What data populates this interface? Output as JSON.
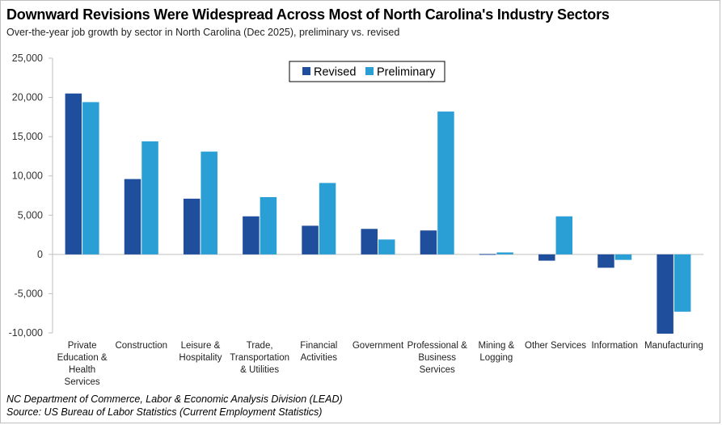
{
  "header": {
    "title": "Downward Revisions Were Widespread Across Most of North Carolina's Industry Sectors",
    "subtitle": "Over-the-year job growth by sector in North Carolina (Dec 2025), preliminary vs. revised"
  },
  "footer": {
    "source_line_1": "NC Department of Commerce, Labor & Economic Analysis Division (LEAD)",
    "source_line_2": "Source: US Bureau of Labor Statistics (Current Employment Statistics)"
  },
  "chart_data": {
    "type": "bar",
    "title": "Downward Revisions Were Widespread Across Most of North Carolina's Industry Sectors",
    "subtitle": "Over-the-year job growth by sector in North Carolina (Dec 2025), preliminary vs. revised",
    "categories": [
      [
        "Private",
        "Education &",
        "Health",
        "Services"
      ],
      [
        "Construction"
      ],
      [
        "Leisure &",
        "Hospitality"
      ],
      [
        "Trade,",
        "Transportation",
        "& Utilities"
      ],
      [
        "Financial",
        "Activities"
      ],
      [
        "Government"
      ],
      [
        "Professional &",
        "Business",
        "Services"
      ],
      [
        "Mining &",
        "Logging"
      ],
      [
        "Other Services"
      ],
      [
        "Information"
      ],
      [
        "Manufacturing"
      ]
    ],
    "series": [
      {
        "name": "Revised",
        "color": "#1f4e9c",
        "values": [
          20500,
          9600,
          7100,
          4850,
          3650,
          3250,
          3050,
          50,
          -800,
          -1700,
          -10100
        ]
      },
      {
        "name": "Preliminary",
        "color": "#2a9fd6",
        "values": [
          19400,
          14400,
          13100,
          7300,
          9100,
          1900,
          18200,
          250,
          4850,
          -700,
          -7300
        ]
      }
    ],
    "ylim": [
      -10000,
      25000
    ],
    "yticks": [
      -10000,
      -5000,
      0,
      5000,
      10000,
      15000,
      20000,
      25000
    ],
    "ytick_labels": [
      "-10,000",
      "-5,000",
      "0",
      "5,000",
      "10,000",
      "15,000",
      "20,000",
      "25,000"
    ],
    "grid": false,
    "legend": "top-center"
  }
}
